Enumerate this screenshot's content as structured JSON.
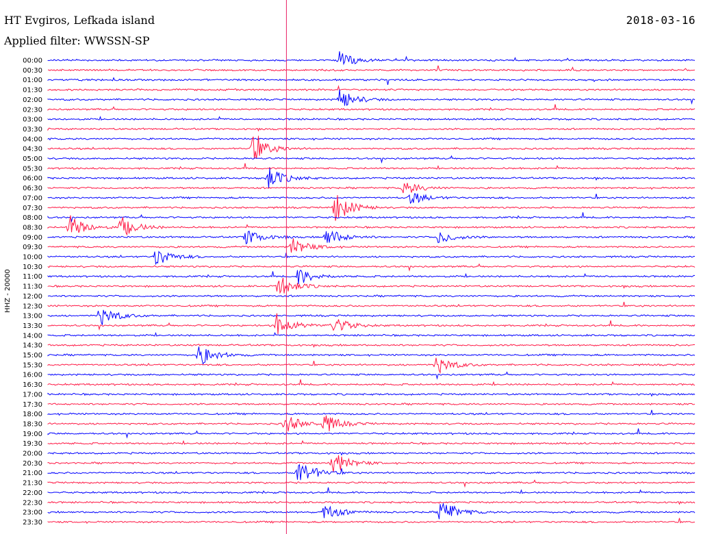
{
  "header": {
    "station": "HT Evgiros, Lefkada island",
    "date": "2018-03-16",
    "filter": "Applied filter: WWSSN-SP"
  },
  "chart_data": {
    "type": "helicorder",
    "channel_label": "HHZ - 20000",
    "colors": {
      "odd": "#0000ff",
      "even": "#ff1744",
      "marker": "#e91e63"
    },
    "rows": [
      "00:00",
      "00:30",
      "01:00",
      "01:30",
      "02:00",
      "02:30",
      "03:00",
      "03:30",
      "04:00",
      "04:30",
      "05:00",
      "05:30",
      "06:00",
      "06:30",
      "07:00",
      "07:30",
      "08:00",
      "08:30",
      "09:00",
      "09:30",
      "10:00",
      "10:30",
      "11:00",
      "11:30",
      "12:00",
      "12:30",
      "13:00",
      "13:30",
      "14:00",
      "14:30",
      "15:00",
      "15:30",
      "16:00",
      "16:30",
      "17:00",
      "17:30",
      "18:00",
      "18:30",
      "19:00",
      "19:30",
      "20:00",
      "20:30",
      "21:00",
      "21:30",
      "22:00",
      "22:30",
      "23:00",
      "23:30"
    ],
    "events": [
      {
        "row": "00:00",
        "minute": 13.5,
        "amp": 0.9
      },
      {
        "row": "02:00",
        "minute": 13.5,
        "amp": 1.1
      },
      {
        "row": "04:30",
        "minute": 9.5,
        "amp": 1.4
      },
      {
        "row": "06:00",
        "minute": 10.2,
        "amp": 1.2
      },
      {
        "row": "06:30",
        "minute": 16.5,
        "amp": 0.8
      },
      {
        "row": "07:00",
        "minute": 16.8,
        "amp": 0.7
      },
      {
        "row": "07:30",
        "minute": 13.3,
        "amp": 1.6
      },
      {
        "row": "08:30",
        "minute": 1.0,
        "amp": 1.3
      },
      {
        "row": "08:30",
        "minute": 3.4,
        "amp": 1.1
      },
      {
        "row": "09:00",
        "minute": 12.9,
        "amp": 1.0
      },
      {
        "row": "09:00",
        "minute": 9.2,
        "amp": 0.8
      },
      {
        "row": "09:00",
        "minute": 18.1,
        "amp": 0.7
      },
      {
        "row": "09:30",
        "minute": 11.3,
        "amp": 1.0
      },
      {
        "row": "10:00",
        "minute": 5.0,
        "amp": 1.0
      },
      {
        "row": "11:00",
        "minute": 11.6,
        "amp": 0.9
      },
      {
        "row": "11:30",
        "minute": 10.7,
        "amp": 1.2
      },
      {
        "row": "13:00",
        "minute": 2.4,
        "amp": 1.1
      },
      {
        "row": "13:30",
        "minute": 10.6,
        "amp": 1.2
      },
      {
        "row": "13:30",
        "minute": 13.2,
        "amp": 1.0
      },
      {
        "row": "15:00",
        "minute": 7.0,
        "amp": 1.2
      },
      {
        "row": "15:30",
        "minute": 18.0,
        "amp": 1.0
      },
      {
        "row": "18:30",
        "minute": 11.0,
        "amp": 1.0
      },
      {
        "row": "18:30",
        "minute": 12.8,
        "amp": 1.0
      },
      {
        "row": "20:30",
        "minute": 13.2,
        "amp": 1.3
      },
      {
        "row": "21:00",
        "minute": 11.6,
        "amp": 1.5
      },
      {
        "row": "23:00",
        "minute": 12.8,
        "amp": 0.9
      },
      {
        "row": "23:00",
        "minute": 18.2,
        "amp": 1.4
      }
    ],
    "marker_minute": 11.05,
    "minutes_per_row": 30
  }
}
